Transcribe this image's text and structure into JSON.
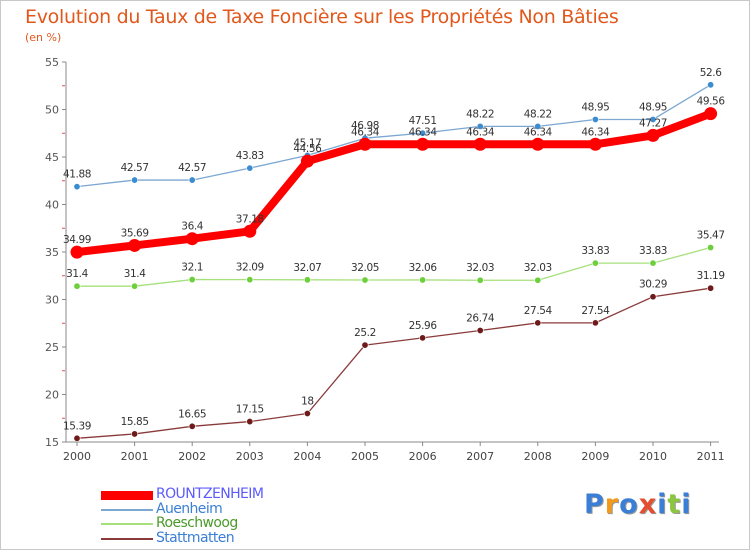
{
  "title": "Evolution du Taux de Taxe Foncière sur les Propriétés Non Bâties",
  "unit": "(en %)",
  "logo": {
    "letters": [
      "P",
      "r",
      "o",
      "x",
      "i",
      "t",
      "i"
    ],
    "colors": [
      "#3a7fd5",
      "#f39a1b",
      "#3a7fd5",
      "#e44d2e",
      "#3a7fd5",
      "#8cc63f",
      "#3a7fd5"
    ]
  },
  "chart_data": {
    "type": "line",
    "title": "Evolution du Taux de Taxe Foncière sur les Propriétés Non Bâties",
    "ylabel": "(en %)",
    "xlabel": "",
    "ylim": [
      15,
      55
    ],
    "yticks": [
      15,
      20,
      25,
      30,
      35,
      40,
      45,
      50,
      55
    ],
    "categories": [
      "2000",
      "2001",
      "2002",
      "2003",
      "2004",
      "2005",
      "2006",
      "2007",
      "2008",
      "2009",
      "2010",
      "2011"
    ],
    "series": [
      {
        "name": "ROUNTZENHEIM",
        "color": "#ff0000",
        "legend_color": "#5b5bff",
        "values": [
          34.99,
          35.69,
          36.4,
          37.18,
          44.56,
          46.34,
          46.34,
          46.34,
          46.34,
          46.34,
          47.27,
          49.56
        ],
        "labels": [
          "34.99",
          "35.69",
          "36.4",
          "37.18",
          "44.56",
          "46.34",
          "46.34",
          "46.34",
          "46.34",
          "46.34",
          "47.27",
          "49.56"
        ]
      },
      {
        "name": "Auenheim",
        "color": "#7ba7d1",
        "dot": "#3c8cd0",
        "legend_color": "#3a7fd5",
        "values": [
          41.88,
          42.57,
          42.57,
          43.83,
          45.17,
          46.98,
          47.51,
          48.22,
          48.22,
          48.95,
          48.95,
          52.6
        ],
        "labels": [
          "41.88",
          "42.57",
          "42.57",
          "43.83",
          "45.17",
          "46.98",
          "47.51",
          "48.22",
          "48.22",
          "48.95",
          "48.95",
          "52.6"
        ]
      },
      {
        "name": "Roeschwoog",
        "color": "#a6e07a",
        "dot": "#6ecf3c",
        "legend_color": "#4a9a2a",
        "values": [
          31.4,
          31.4,
          32.1,
          32.09,
          32.07,
          32.05,
          32.06,
          32.03,
          32.03,
          33.83,
          33.83,
          35.47
        ],
        "labels": [
          "31.4",
          "31.4",
          "32.1",
          "32.09",
          "32.07",
          "32.05",
          "32.06",
          "32.03",
          "32.03",
          "33.83",
          "33.83",
          "35.47"
        ]
      },
      {
        "name": "Stattmatten",
        "color": "#8b3a3a",
        "dot": "#6e1a1a",
        "legend_color": "#3a7fd5",
        "values": [
          15.39,
          15.85,
          16.65,
          17.15,
          18,
          25.2,
          25.96,
          26.74,
          27.54,
          27.54,
          30.29,
          31.19
        ],
        "labels": [
          "15.39",
          "15.85",
          "16.65",
          "17.15",
          "18",
          "25.2",
          "25.96",
          "26.74",
          "27.54",
          "27.54",
          "30.29",
          "31.19"
        ]
      }
    ],
    "legend": [
      "ROUNTZENHEIM",
      "Auenheim",
      "Roeschwoog",
      "Stattmatten"
    ],
    "legend_position": "bottom-left",
    "grid": false
  }
}
